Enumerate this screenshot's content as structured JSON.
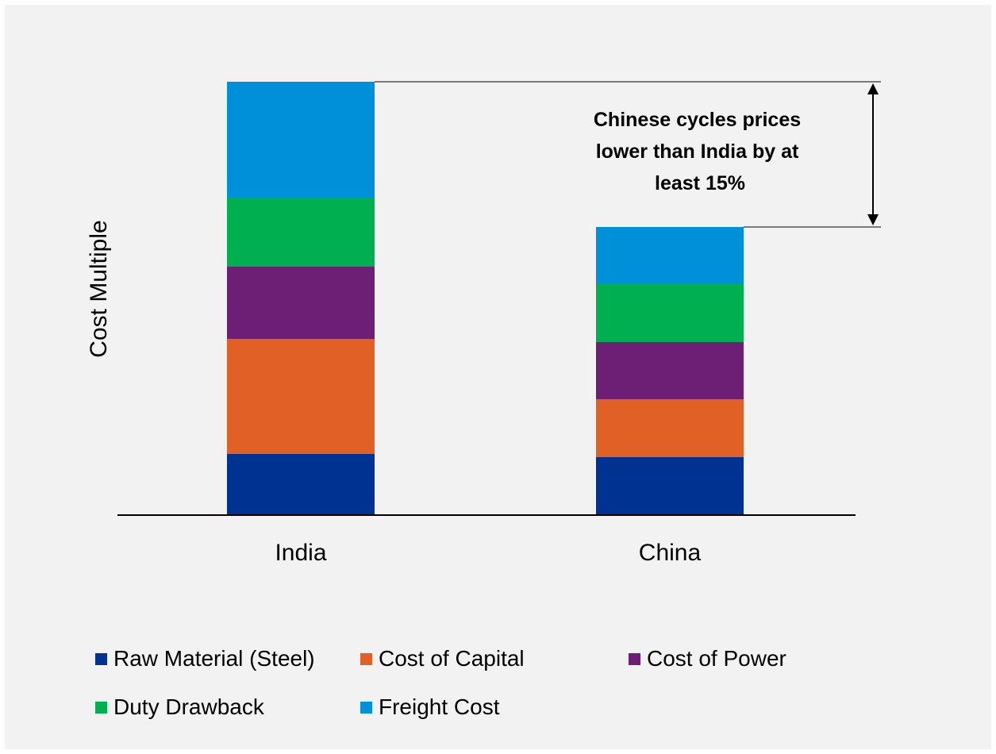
{
  "chart_data": {
    "type": "bar",
    "stacked": true,
    "title": "",
    "xlabel": "",
    "ylabel": "Cost Multiple",
    "ylim": [
      0,
      546
    ],
    "grid": false,
    "legend_position": "bottom",
    "categories": [
      "India",
      "China"
    ],
    "series": [
      {
        "name": "Raw Material (Steel)",
        "color": "#003391",
        "values": [
          77,
          73
        ]
      },
      {
        "name": "Cost of Capital",
        "color": "#e06026",
        "values": [
          145,
          73
        ]
      },
      {
        "name": "Cost of Power",
        "color": "#6c1f75",
        "values": [
          91,
          72
        ]
      },
      {
        "name": "Duty Drawback",
        "color": "#00b050",
        "values": [
          87,
          74
        ]
      },
      {
        "name": "Freight Cost",
        "color": "#0090da",
        "values": [
          146,
          71
        ]
      }
    ],
    "annotation": {
      "text": "Chinese cycles prices lower than India by at least 15%"
    }
  }
}
